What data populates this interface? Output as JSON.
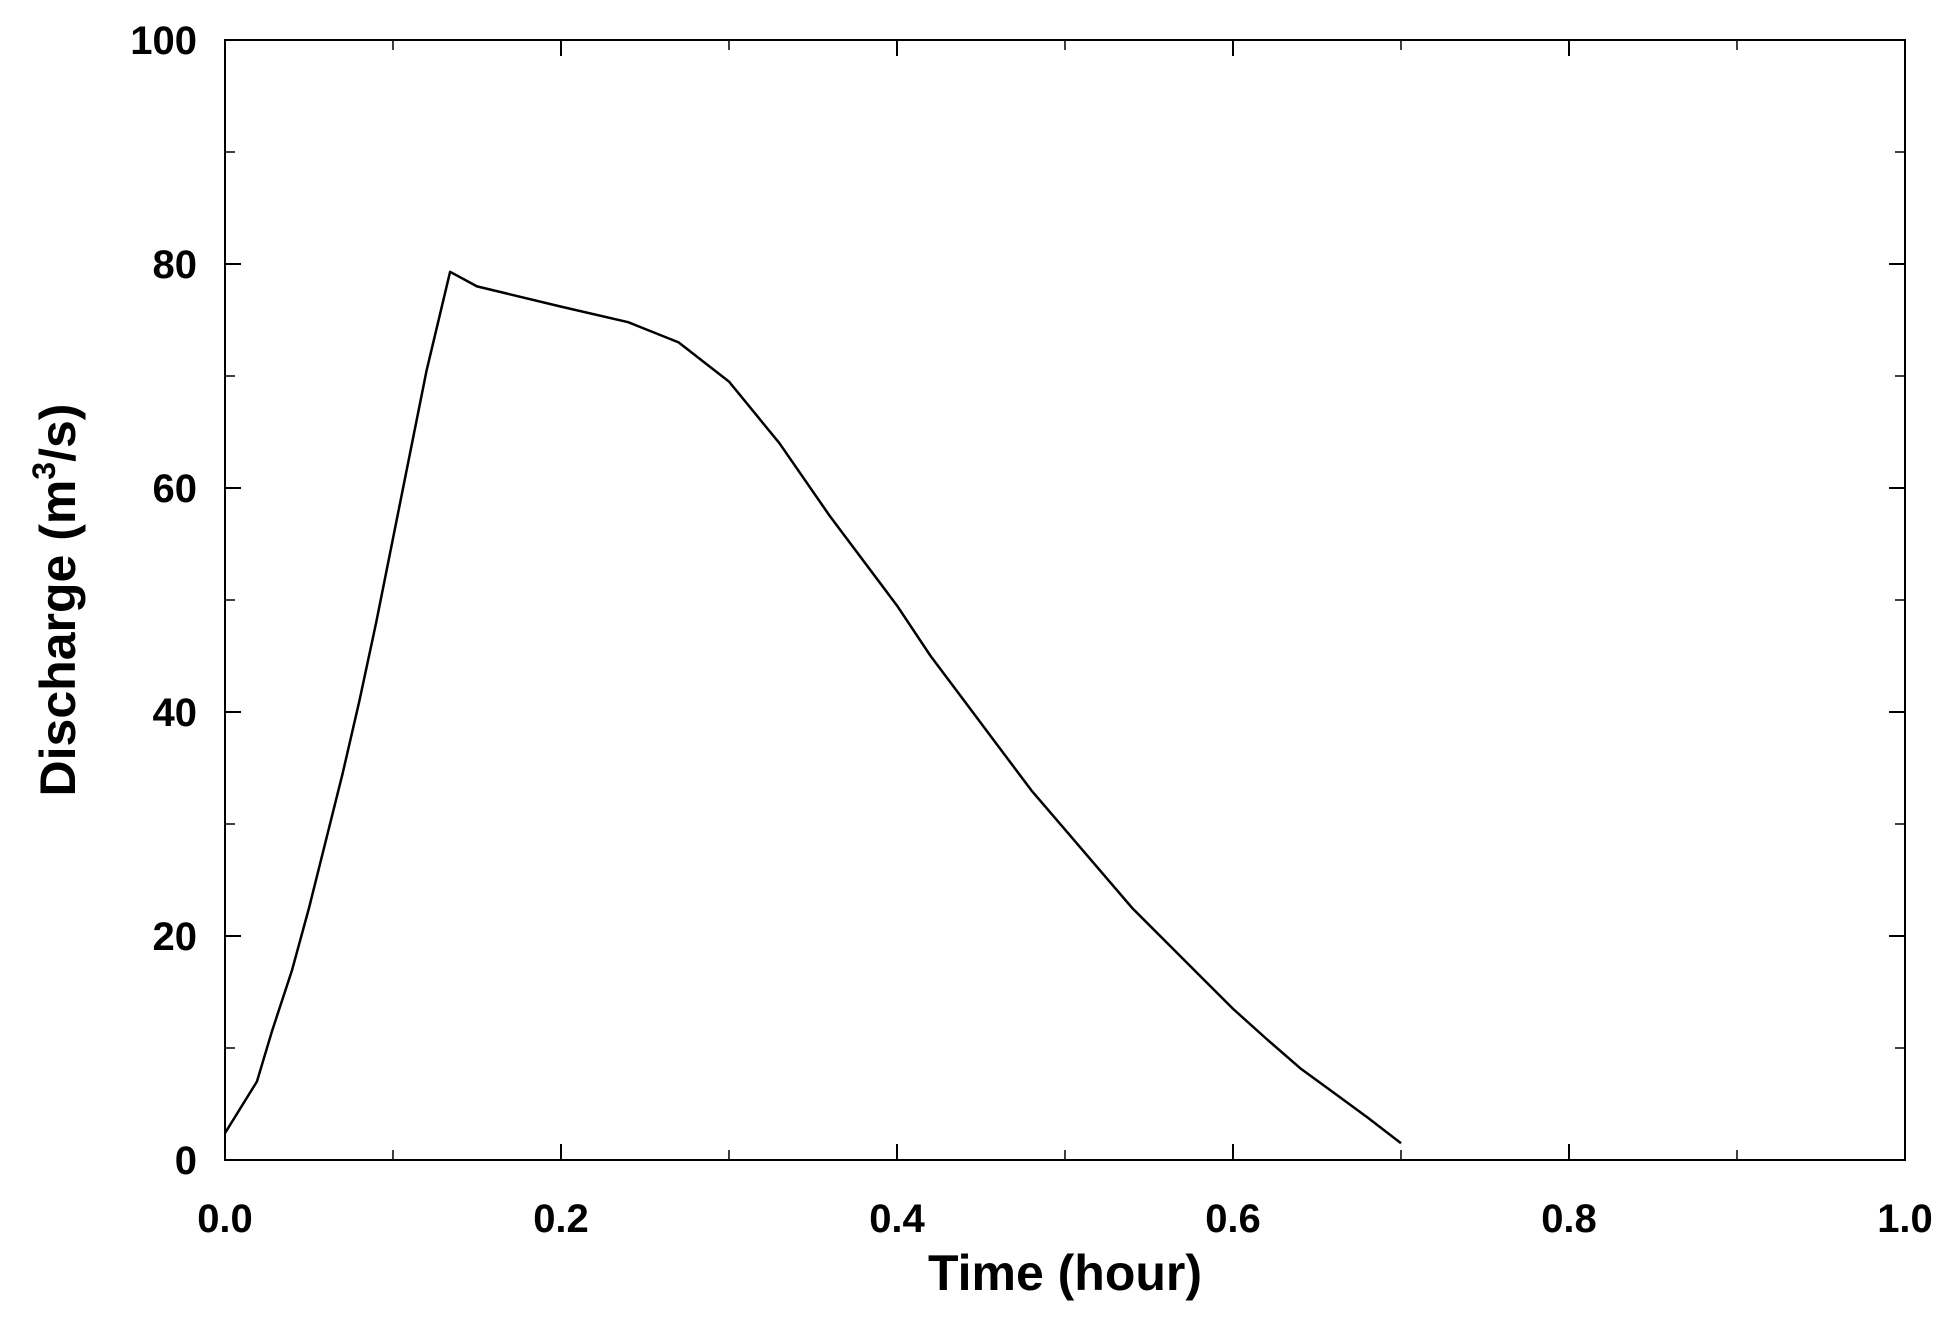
{
  "chart_data": {
    "type": "line",
    "xlabel": "Time (hour)",
    "ylabel": {
      "prefix": "Discharge (m",
      "superscript": "3",
      "suffix": "/s)"
    },
    "xlim": [
      0.0,
      1.0
    ],
    "ylim": [
      0,
      100
    ],
    "x_ticks": [
      "0.0",
      "0.2",
      "0.4",
      "0.6",
      "0.8",
      "1.0"
    ],
    "x_tick_values": [
      0.0,
      0.2,
      0.4,
      0.6,
      0.8,
      1.0
    ],
    "x_minor_tick_values": [
      0.1,
      0.3,
      0.5,
      0.7,
      0.9
    ],
    "y_ticks": [
      "0",
      "20",
      "40",
      "60",
      "80",
      "100"
    ],
    "y_tick_values": [
      0,
      20,
      40,
      60,
      80,
      100
    ],
    "y_minor_tick_values": [
      10,
      30,
      50,
      70,
      90
    ],
    "grid": false,
    "colors": {
      "line": "#000000",
      "frame": "#000000"
    },
    "series": [
      {
        "x": [
          0.0,
          0.019,
          0.028,
          0.04,
          0.05,
          0.06,
          0.07,
          0.08,
          0.09,
          0.1,
          0.11,
          0.12,
          0.134,
          0.15,
          0.2,
          0.24,
          0.27,
          0.3,
          0.33,
          0.36,
          0.4,
          0.42,
          0.44,
          0.46,
          0.48,
          0.5,
          0.52,
          0.54,
          0.56,
          0.58,
          0.6,
          0.62,
          0.64,
          0.66,
          0.68,
          0.7
        ],
        "y": [
          2.4,
          7.0,
          11.5,
          17.0,
          22.5,
          28.5,
          34.5,
          41.0,
          48.0,
          55.5,
          63.0,
          70.5,
          79.3,
          78.0,
          76.2,
          74.8,
          73.0,
          69.5,
          64.0,
          57.5,
          49.5,
          45.0,
          41.0,
          37.0,
          33.0,
          29.5,
          26.0,
          22.5,
          19.5,
          16.5,
          13.5,
          10.8,
          8.2,
          6.0,
          3.8,
          1.5
        ]
      }
    ]
  }
}
